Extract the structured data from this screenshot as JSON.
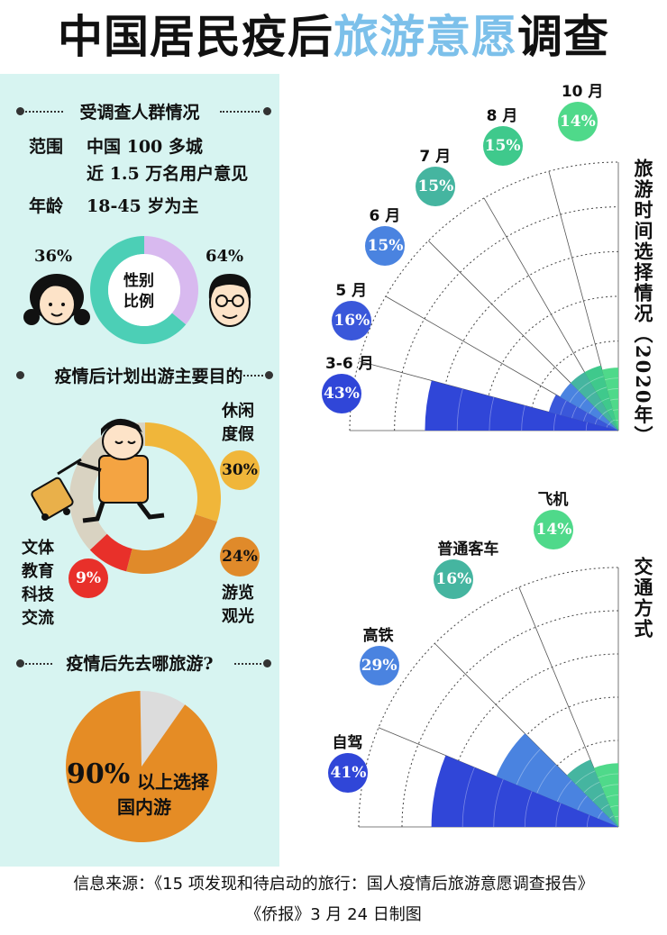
{
  "title": {
    "part1": "中国居民疫后",
    "part2": "旅游意愿",
    "part3": "调查"
  },
  "colors": {
    "panel_bg": "#d7f4f1",
    "title_highlight": "#7cc0ea",
    "dark_blue": "#3046d8",
    "mid_blue": "#4a83e0",
    "teal": "#45b5a0",
    "green": "#4fd98a",
    "leisure": "#f0b63a",
    "sightseeing": "#e08a2a",
    "culture": "#e8302a",
    "domestic": "#e58c25"
  },
  "respondents": {
    "heading": "受调查人群情况",
    "scope_label": "范围",
    "scope_line1": "中国 100 多城",
    "scope_line2": "近 1.5 万名用户意见",
    "age_label": "年龄",
    "age_value": "18-45 岁为主",
    "gender_center": [
      "性别",
      "比例"
    ],
    "female_pct": "36%",
    "male_pct": "64%"
  },
  "purpose": {
    "heading": "疫情后计划出游主要目的",
    "items": [
      {
        "label": "休闲度假",
        "value": "30%"
      },
      {
        "label": "游览观光",
        "value": "24%"
      },
      {
        "label": "文体教育科技交流",
        "value": "9%"
      }
    ]
  },
  "destination": {
    "heading": "疫情后先去哪旅游?",
    "pct": "90%",
    "text_line1": "以上选择",
    "text_line2": "国内游"
  },
  "travel_time": {
    "side_title": "旅游时间选择情况（2020年）",
    "months": [
      {
        "label": "3-6 月",
        "value": "43%"
      },
      {
        "label": "5 月",
        "value": "16%"
      },
      {
        "label": "6 月",
        "value": "15%"
      },
      {
        "label": "7 月",
        "value": "15%"
      },
      {
        "label": "8 月",
        "value": "15%"
      },
      {
        "label": "10 月",
        "value": "14%"
      }
    ]
  },
  "transport": {
    "side_title": "交通方式",
    "modes": [
      {
        "label": "自驾",
        "value": "41%"
      },
      {
        "label": "高铁",
        "value": "29%"
      },
      {
        "label": "普通客车",
        "value": "16%"
      },
      {
        "label": "飞机",
        "value": "14%"
      }
    ]
  },
  "footer": {
    "line1": "信息来源：《15 项发现和待启动的旅行：国人疫情后旅游意愿调查报告》",
    "line2": "《侨报》3 月 24 日制图"
  },
  "chart_data": [
    {
      "type": "pie",
      "labels": [
        "女",
        "男"
      ],
      "values": [
        36,
        64
      ]
    },
    {
      "type": "pie",
      "labels": [
        "休闲度假",
        "游览观光",
        "文体教育科技交流"
      ],
      "values": [
        30,
        24,
        9
      ]
    },
    {
      "type": "pie",
      "labels": [
        "国内游"
      ],
      "values": [
        90
      ]
    },
    {
      "type": "bar",
      "categories": [
        "3-6 月",
        "5 月",
        "6 月",
        "7 月",
        "8 月",
        "10 月"
      ],
      "values": [
        43,
        16,
        15,
        15,
        15,
        14
      ]
    },
    {
      "type": "bar",
      "categories": [
        "自驾",
        "高铁",
        "普通客车",
        "飞机"
      ],
      "values": [
        41,
        29,
        16,
        14
      ]
    }
  ]
}
